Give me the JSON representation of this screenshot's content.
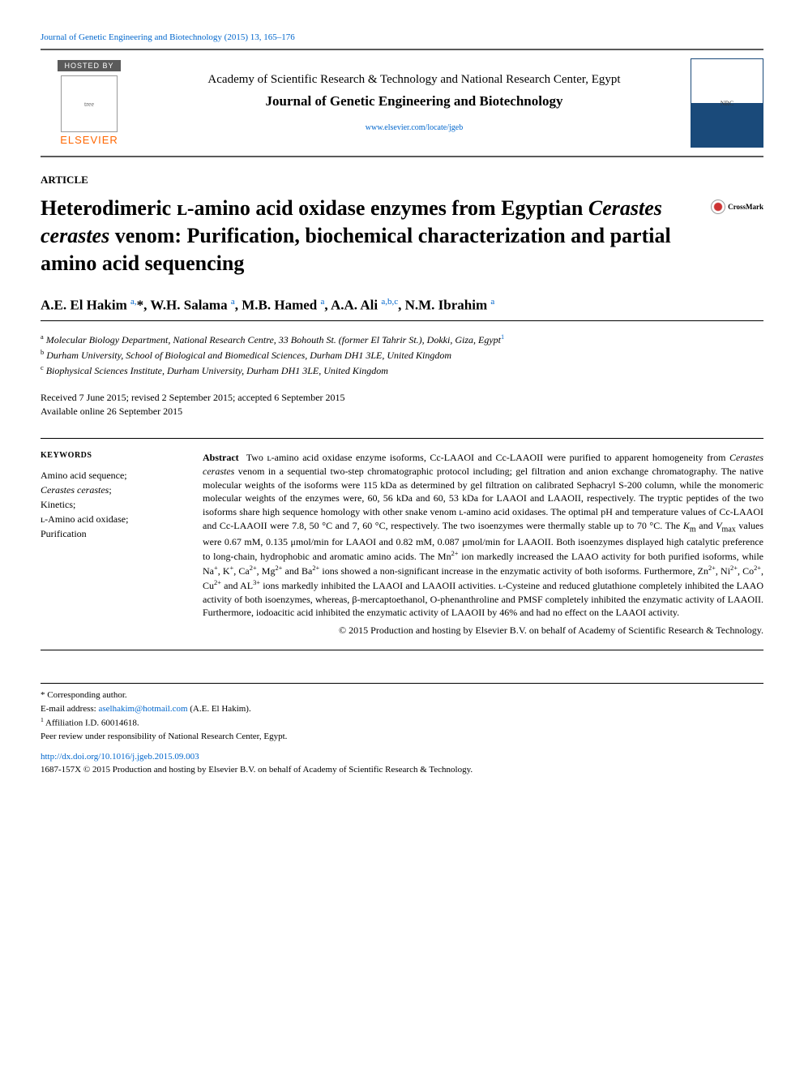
{
  "citation": "Journal of Genetic Engineering and Biotechnology (2015) 13, 165–176",
  "hosted_label": "HOSTED BY",
  "publisher": "ELSEVIER",
  "academy": "Academy of Scientific Research & Technology and National Research Center, Egypt",
  "journal": "Journal of Genetic Engineering and Biotechnology",
  "journal_url": "www.elsevier.com/locate/jgeb",
  "nrc_label": "NRC",
  "article_type": "ARTICLE",
  "title_html": "Heterodimeric ʟ-amino acid oxidase enzymes from Egyptian <em>Cerastes cerastes</em> venom: Purification, biochemical characterization and partial amino acid sequencing",
  "crossmark": "CrossMark",
  "authors_html": "A.E. El Hakim <sup>a,</sup>*, W.H. Salama <sup>a</sup>, M.B. Hamed <sup>a</sup>, A.A. Ali <sup>a,b,c</sup>, N.M. Ibrahim <sup>a</sup>",
  "affiliations": [
    {
      "sup": "a",
      "text": "Molecular Biology Department, National Research Centre, 33 Bohouth St. (former El Tahrir St.), Dokki, Giza, Egypt",
      "trail_sup": "1"
    },
    {
      "sup": "b",
      "text": "Durham University, School of Biological and Biomedical Sciences, Durham DH1 3LE, United Kingdom",
      "trail_sup": ""
    },
    {
      "sup": "c",
      "text": "Biophysical Sciences Institute, Durham University, Durham DH1 3LE, United Kingdom",
      "trail_sup": ""
    }
  ],
  "dates": "Received 7 June 2015; revised 2 September 2015; accepted 6 September 2015",
  "online": "Available online 26 September 2015",
  "keywords_head": "KEYWORDS",
  "keywords_html": "Amino acid sequence;<br><em>Cerastes cerastes</em>;<br>Kinetics;<br>ʟ-Amino acid oxidase;<br>Purification",
  "abstract_html": "<strong>Abstract</strong>&nbsp;&nbsp;Two ʟ-amino acid oxidase enzyme isoforms, Cc-LAAOI and Cc-LAAOII were purified to apparent homogeneity from <em>Cerastes cerastes</em> venom in a sequential two-step chromatographic protocol including; gel filtration and anion exchange chromatography. The native molecular weights of the isoforms were 115 kDa as determined by gel filtration on calibrated Sephacryl S-200 column, while the monomeric molecular weights of the enzymes were, 60, 56 kDa and 60, 53 kDa for LAAOI and LAAOII, respectively. The tryptic peptides of the two isoforms share high sequence homology with other snake venom ʟ-amino acid oxidases. The optimal pH and temperature values of Cc-LAAOI and Cc-LAAOII were 7.8, 50 °C and 7, 60 °C, respectively. The two isoenzymes were thermally stable up to 70 °C. The <em>K</em><sub>m</sub> and <em>V</em><sub>max</sub> values were 0.67 mM, 0.135 μmol/min for LAAOI and 0.82 mM, 0.087 μmol/min for LAAOII. Both isoenzymes displayed high catalytic preference to long-chain, hydrophobic and aromatic amino acids. The Mn<sup>2+</sup> ion markedly increased the LAAO activity for both purified isoforms, while Na<sup>+</sup>, K<sup>+</sup>, Ca<sup>2+</sup>, Mg<sup>2+</sup> and Ba<sup>2+</sup> ions showed a non-significant increase in the enzymatic activity of both isoforms. Furthermore, Zn<sup>2+</sup>, Ni<sup>2+</sup>, Co<sup>2+</sup>, Cu<sup>2+</sup> and AL<sup>3+</sup> ions markedly inhibited the LAAOI and LAAOII activities. ʟ-Cysteine and reduced glutathione completely inhibited the LAAO activity of both isoenzymes, whereas, β-mercaptoethanol, O-phenanthroline and PMSF completely inhibited the enzymatic activity of LAAOII. Furthermore, iodoacitic acid inhibited the enzymatic activity of LAAOII by 46% and had no effect on the LAAOI activity.",
  "copyright": "© 2015 Production and hosting by Elsevier B.V. on behalf of Academy of Scientific Research & Technology.",
  "corresponding": "* Corresponding author.",
  "email_label": "E-mail address:",
  "email": "aselhakim@hotmail.com",
  "email_paren": "(A.E. El Hakim).",
  "affil_id": "Affiliation I.D. 60014618.",
  "affil_id_sup": "1",
  "peer_review": "Peer review under responsibility of National Research Center, Egypt.",
  "doi": "http://dx.doi.org/10.1016/j.jgeb.2015.09.003",
  "issn": "1687-157X © 2015 Production and hosting by Elsevier B.V. on behalf of Academy of Scientific Research & Technology."
}
